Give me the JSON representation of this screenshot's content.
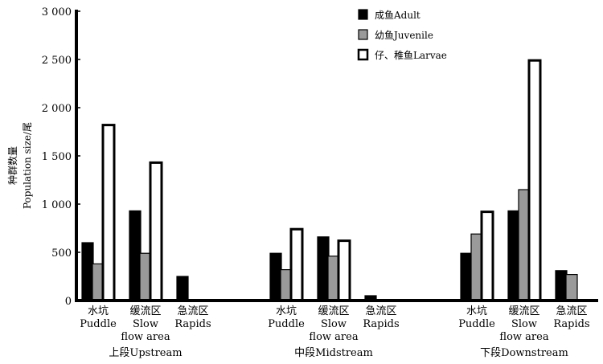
{
  "chart_data": {
    "type": "bar",
    "ylabel": [
      "种群数量",
      "Population size/尾"
    ],
    "ylim": [
      0,
      3000
    ],
    "yticks": [
      "0",
      "500",
      "1 000",
      "1 500",
      "2 000",
      "2 500",
      "3 000"
    ],
    "legend": {
      "position": "top-right",
      "entries": [
        "成鱼Adult",
        "幼鱼Juvenile",
        "仔、稚鱼Larvae"
      ]
    },
    "colors": {
      "Adult": "#000000",
      "Juvenile": "#9a9a9a",
      "Larvae": "#ffffff"
    },
    "groups": [
      {
        "name": "上段Upstream",
        "categories": [
          {
            "label": [
              "水坑",
              "Puddle"
            ],
            "values": [
              600,
              380,
              1820
            ]
          },
          {
            "label": [
              "缓流区",
              "Slow",
              "flow area"
            ],
            "values": [
              930,
              490,
              1430
            ]
          },
          {
            "label": [
              "急流区",
              "Rapids"
            ],
            "values": [
              250,
              0,
              0
            ]
          }
        ]
      },
      {
        "name": "中段Midstream",
        "categories": [
          {
            "label": [
              "水坑",
              "Puddle"
            ],
            "values": [
              490,
              320,
              740
            ]
          },
          {
            "label": [
              "缓流区",
              "Slow",
              "flow area"
            ],
            "values": [
              660,
              460,
              620
            ]
          },
          {
            "label": [
              "急流区",
              "Rapids"
            ],
            "values": [
              50,
              0,
              0
            ]
          }
        ]
      },
      {
        "name": "下段Downstream",
        "categories": [
          {
            "label": [
              "水坑",
              "Puddle"
            ],
            "values": [
              490,
              690,
              920
            ]
          },
          {
            "label": [
              "缓流区",
              "Slow",
              "flow area"
            ],
            "values": [
              930,
              1150,
              2490
            ]
          },
          {
            "label": [
              "急流区",
              "Rapids"
            ],
            "values": [
              310,
              270,
              0
            ]
          }
        ]
      }
    ]
  }
}
